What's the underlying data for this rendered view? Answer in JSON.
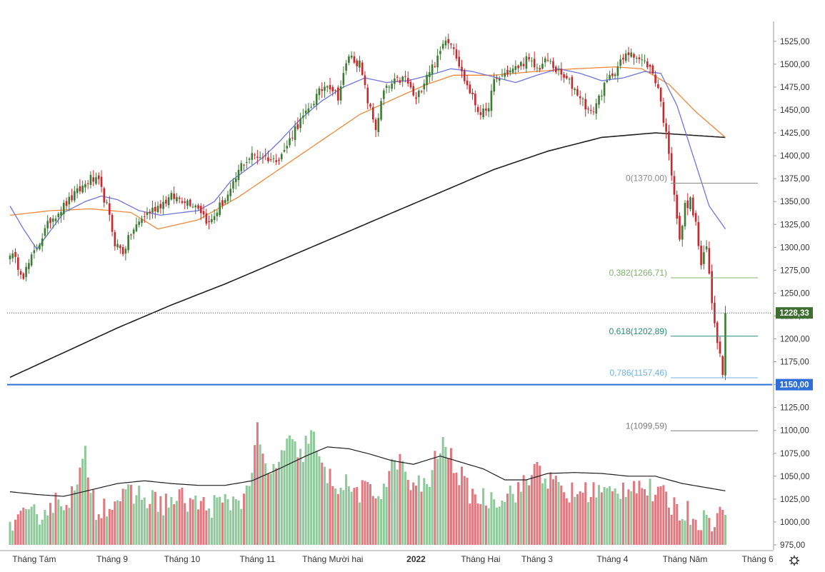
{
  "chart_data": {
    "type": "candlestick",
    "title": "",
    "ylim": [
      975,
      1535
    ],
    "y_ticks": [
      "1525,00",
      "1500,00",
      "1475,00",
      "1450,00",
      "1425,00",
      "1400,00",
      "1375,00",
      "1350,00",
      "1325,00",
      "1300,00",
      "1275,00",
      "1250,00",
      "1225,00",
      "1200,00",
      "1175,00",
      "1150,00",
      "1125,00",
      "1100,00",
      "1075,00",
      "1050,00",
      "1025,00",
      "1000,00",
      "975,00"
    ],
    "x_ticks": [
      "Tháng Tám",
      "Tháng 9",
      "Tháng 10",
      "Tháng 11",
      "Tháng Mười hai",
      "2022",
      "Tháng Hai",
      "Tháng 3",
      "Tháng 4",
      "Tháng Năm",
      "Tháng 6"
    ],
    "last_price": {
      "value": 1228.33,
      "label": "1228,33"
    },
    "support_line": {
      "value": 1150,
      "label": "1150,00"
    },
    "fibonacci": [
      {
        "value": 1370.0,
        "label": "0(1370,00)"
      },
      {
        "value": 1266.71,
        "label": "0,382(1266,71)"
      },
      {
        "value": 1202.89,
        "label": "0,618(1202,89)"
      },
      {
        "value": 1157.46,
        "label": "0,786(1157,46)"
      },
      {
        "value": 1099.59,
        "label": "1(1099,59)"
      }
    ],
    "close_anchors": [
      [
        0,
        1295
      ],
      [
        5,
        1270
      ],
      [
        10,
        1300
      ],
      [
        15,
        1330
      ],
      [
        20,
        1345
      ],
      [
        25,
        1360
      ],
      [
        30,
        1375
      ],
      [
        33,
        1370
      ],
      [
        36,
        1345
      ],
      [
        39,
        1305
      ],
      [
        42,
        1295
      ],
      [
        45,
        1315
      ],
      [
        50,
        1335
      ],
      [
        55,
        1345
      ],
      [
        60,
        1355
      ],
      [
        65,
        1352
      ],
      [
        70,
        1345
      ],
      [
        74,
        1325
      ],
      [
        78,
        1345
      ],
      [
        82,
        1360
      ],
      [
        86,
        1390
      ],
      [
        90,
        1400
      ],
      [
        94,
        1400
      ],
      [
        98,
        1395
      ],
      [
        102,
        1405
      ],
      [
        106,
        1430
      ],
      [
        110,
        1445
      ],
      [
        114,
        1465
      ],
      [
        118,
        1480
      ],
      [
        122,
        1465
      ],
      [
        126,
        1510
      ],
      [
        130,
        1500
      ],
      [
        133,
        1460
      ],
      [
        136,
        1430
      ],
      [
        139,
        1470
      ],
      [
        143,
        1480
      ],
      [
        147,
        1485
      ],
      [
        151,
        1460
      ],
      [
        155,
        1490
      ],
      [
        159,
        1505
      ],
      [
        162,
        1530
      ],
      [
        165,
        1520
      ],
      [
        168,
        1490
      ],
      [
        171,
        1470
      ],
      [
        174,
        1450
      ],
      [
        177,
        1445
      ],
      [
        180,
        1480
      ],
      [
        184,
        1490
      ],
      [
        188,
        1495
      ],
      [
        192,
        1505
      ],
      [
        196,
        1495
      ],
      [
        200,
        1505
      ],
      [
        204,
        1490
      ],
      [
        208,
        1480
      ],
      [
        212,
        1465
      ],
      [
        216,
        1445
      ],
      [
        220,
        1470
      ],
      [
        224,
        1490
      ],
      [
        228,
        1505
      ],
      [
        231,
        1515
      ],
      [
        234,
        1505
      ],
      [
        237,
        1500
      ],
      [
        239,
        1490
      ],
      [
        241,
        1475
      ],
      [
        243,
        1440
      ],
      [
        245,
        1405
      ],
      [
        247,
        1360
      ],
      [
        249,
        1305
      ],
      [
        251,
        1345
      ],
      [
        253,
        1350
      ],
      [
        255,
        1325
      ],
      [
        257,
        1280
      ],
      [
        259,
        1300
      ],
      [
        261,
        1240
      ],
      [
        263,
        1200
      ],
      [
        265,
        1165
      ],
      [
        266,
        1228
      ]
    ],
    "ma20_anchors": [
      [
        0,
        1345
      ],
      [
        5,
        1320
      ],
      [
        10,
        1298
      ],
      [
        15,
        1318
      ],
      [
        20,
        1338
      ],
      [
        28,
        1350
      ],
      [
        34,
        1356
      ],
      [
        40,
        1352
      ],
      [
        48,
        1340
      ],
      [
        56,
        1335
      ],
      [
        64,
        1338
      ],
      [
        70,
        1340
      ],
      [
        76,
        1350
      ],
      [
        82,
        1372
      ],
      [
        88,
        1385
      ],
      [
        94,
        1398
      ],
      [
        100,
        1415
      ],
      [
        108,
        1440
      ],
      [
        116,
        1460
      ],
      [
        124,
        1475
      ],
      [
        132,
        1485
      ],
      [
        140,
        1480
      ],
      [
        148,
        1482
      ],
      [
        156,
        1488
      ],
      [
        164,
        1495
      ],
      [
        172,
        1492
      ],
      [
        180,
        1486
      ],
      [
        188,
        1480
      ],
      [
        196,
        1488
      ],
      [
        204,
        1495
      ],
      [
        212,
        1490
      ],
      [
        220,
        1482
      ],
      [
        228,
        1485
      ],
      [
        236,
        1492
      ],
      [
        242,
        1490
      ],
      [
        248,
        1455
      ],
      [
        254,
        1400
      ],
      [
        260,
        1345
      ],
      [
        266,
        1320
      ]
    ],
    "ma50_anchors": [
      [
        0,
        1335
      ],
      [
        15,
        1340
      ],
      [
        30,
        1342
      ],
      [
        45,
        1338
      ],
      [
        55,
        1320
      ],
      [
        70,
        1330
      ],
      [
        85,
        1355
      ],
      [
        100,
        1385
      ],
      [
        115,
        1415
      ],
      [
        130,
        1445
      ],
      [
        145,
        1465
      ],
      [
        155,
        1478
      ],
      [
        165,
        1488
      ],
      [
        180,
        1488
      ],
      [
        195,
        1492
      ],
      [
        210,
        1495
      ],
      [
        225,
        1497
      ],
      [
        235,
        1495
      ],
      [
        245,
        1478
      ],
      [
        255,
        1448
      ],
      [
        266,
        1420
      ]
    ],
    "ma200_anchors": [
      [
        0,
        1158
      ],
      [
        20,
        1185
      ],
      [
        40,
        1212
      ],
      [
        60,
        1237
      ],
      [
        80,
        1260
      ],
      [
        100,
        1285
      ],
      [
        120,
        1310
      ],
      [
        140,
        1335
      ],
      [
        160,
        1360
      ],
      [
        180,
        1385
      ],
      [
        200,
        1405
      ],
      [
        220,
        1420
      ],
      [
        240,
        1425
      ],
      [
        266,
        1420
      ]
    ],
    "volume_anchors": [
      [
        0,
        22
      ],
      [
        8,
        30
      ],
      [
        16,
        45
      ],
      [
        24,
        55
      ],
      [
        28,
        95
      ],
      [
        32,
        40
      ],
      [
        40,
        50
      ],
      [
        48,
        55
      ],
      [
        56,
        45
      ],
      [
        64,
        50
      ],
      [
        72,
        42
      ],
      [
        80,
        45
      ],
      [
        88,
        55
      ],
      [
        92,
        120
      ],
      [
        96,
        70
      ],
      [
        100,
        95
      ],
      [
        104,
        110
      ],
      [
        108,
        95
      ],
      [
        112,
        125
      ],
      [
        116,
        80
      ],
      [
        120,
        70
      ],
      [
        128,
        60
      ],
      [
        136,
        55
      ],
      [
        140,
        70
      ],
      [
        144,
        95
      ],
      [
        150,
        60
      ],
      [
        156,
        70
      ],
      [
        160,
        110
      ],
      [
        164,
        95
      ],
      [
        170,
        60
      ],
      [
        176,
        50
      ],
      [
        184,
        55
      ],
      [
        192,
        65
      ],
      [
        196,
        90
      ],
      [
        200,
        70
      ],
      [
        208,
        55
      ],
      [
        216,
        60
      ],
      [
        224,
        55
      ],
      [
        232,
        70
      ],
      [
        240,
        55
      ],
      [
        244,
        50
      ],
      [
        248,
        40
      ],
      [
        252,
        35
      ],
      [
        256,
        30
      ],
      [
        260,
        25
      ],
      [
        264,
        35
      ],
      [
        266,
        28
      ]
    ],
    "volume_ma_anchors": [
      [
        0,
        1033
      ],
      [
        10,
        1030
      ],
      [
        20,
        1028
      ],
      [
        30,
        1035
      ],
      [
        40,
        1042
      ],
      [
        50,
        1045
      ],
      [
        60,
        1042
      ],
      [
        70,
        1040
      ],
      [
        80,
        1040
      ],
      [
        90,
        1045
      ],
      [
        100,
        1058
      ],
      [
        110,
        1072
      ],
      [
        118,
        1082
      ],
      [
        126,
        1080
      ],
      [
        134,
        1074
      ],
      [
        142,
        1067
      ],
      [
        150,
        1063
      ],
      [
        160,
        1072
      ],
      [
        168,
        1065
      ],
      [
        176,
        1058
      ],
      [
        184,
        1046
      ],
      [
        192,
        1046
      ],
      [
        200,
        1053
      ],
      [
        210,
        1054
      ],
      [
        220,
        1053
      ],
      [
        230,
        1050
      ],
      [
        240,
        1050
      ],
      [
        250,
        1042
      ],
      [
        260,
        1037
      ],
      [
        266,
        1034
      ]
    ],
    "colors": {
      "up": "#3d7b35",
      "down": "#c8282d",
      "vol_up": "#8fc89a",
      "vol_down": "#e0787f",
      "ma20": "#6e74e0",
      "ma50": "#f0883a",
      "ma200": "#1e1e1e",
      "support": "#2f6fd8",
      "fib0": "#8a8a8a",
      "fib382": "#7fb06e",
      "fib618": "#2a8a7a",
      "fib786": "#6fb3e8",
      "fib1": "#7a7a7a",
      "last_price_bg": "#3d6e2f"
    }
  }
}
